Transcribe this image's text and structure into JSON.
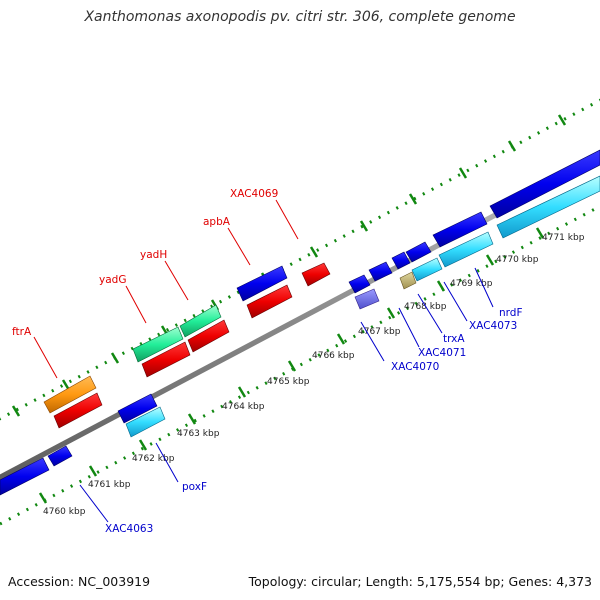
{
  "title": "Xanthomonas axonopodis pv. citri str. 306, complete genome",
  "footer": {
    "accession": "Accession: NC_003919",
    "summary": "Topology: circular; Length: 5,175,554 bp; Genes: 4,373"
  },
  "colors": {
    "upper_label": "#e00000",
    "lower_label": "#0000cc",
    "backbone": "#8a8a8a",
    "tick_marks": "#118811"
  },
  "scale_ticks": [
    "4760 kbp",
    "4761 kbp",
    "4762 kbp",
    "4763 kbp",
    "4764 kbp",
    "4765 kbp",
    "4766 kbp",
    "4767 kbp",
    "4768 kbp",
    "4769 kbp",
    "4770 kbp",
    "4771 kbp"
  ],
  "gene_labels_upper": [
    "ftrA",
    "yadG",
    "yadH",
    "apbA",
    "XAC4069"
  ],
  "gene_labels_lower": [
    "XAC4063",
    "poxF",
    "XAC4070",
    "XAC4071",
    "trxA",
    "XAC4073",
    "nrdF"
  ]
}
